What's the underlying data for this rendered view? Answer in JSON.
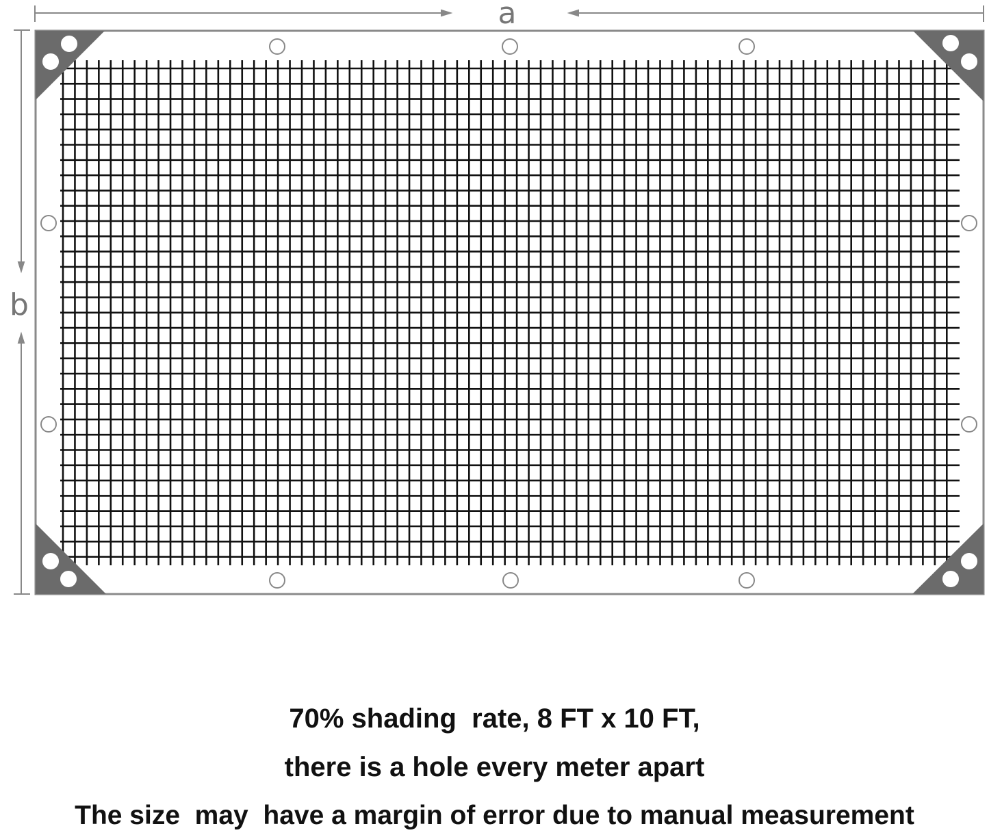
{
  "dimensions": {
    "width_label": "a",
    "height_label": "b"
  },
  "colors": {
    "frame": "#8a8a8a",
    "corner_patch": "#6b6b6b",
    "mesh": "#111111",
    "dimension_line": "#888888"
  },
  "grommets": {
    "top": 3,
    "bottom": 3,
    "left": 2,
    "right": 2,
    "per_corner": 2
  },
  "caption": {
    "line1": "70% shading  rate, 8 FT x 10 FT,",
    "line2": "there is a hole every meter apart",
    "line3": "The size  may  have a margin of error due to manual measurement"
  }
}
